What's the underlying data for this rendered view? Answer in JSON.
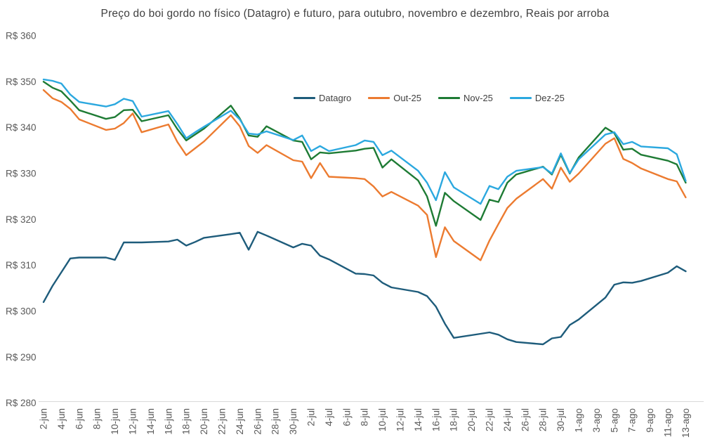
{
  "chart_data": {
    "type": "line",
    "title": "Preço do boi gordo no físico (Datagro) e futuro, para outubro, novembro e dezembro, Reais por arroba",
    "xlabel": "",
    "ylabel": "",
    "ylim": [
      280,
      360
    ],
    "y_tick_labels": [
      "R$ 280",
      "R$ 290",
      "R$ 300",
      "R$ 310",
      "R$ 320",
      "R$ 330",
      "R$ 340",
      "R$ 350",
      "R$ 360"
    ],
    "y_tick_values": [
      280,
      290,
      300,
      310,
      320,
      330,
      340,
      350,
      360
    ],
    "grid": false,
    "legend_position": "top-center",
    "x_tick_labels": [
      "2-jun",
      "4-jun",
      "6-jun",
      "8-jun",
      "10-jun",
      "12-jun",
      "14-jun",
      "16-jun",
      "18-jun",
      "20-jun",
      "22-jun",
      "24-jun",
      "26-jun",
      "28-jun",
      "30-jun",
      "2-jul",
      "4-jul",
      "6-jul",
      "8-jul",
      "10-jul",
      "12-jul",
      "14-jul",
      "16-jul",
      "18-jul",
      "20-jul",
      "22-jul",
      "24-jul",
      "26-jul",
      "28-jul",
      "30-jul",
      "1-ago",
      "3-ago",
      "5-ago",
      "7-ago",
      "9-ago",
      "11-ago",
      "13-ago"
    ],
    "x_tick_day_offsets": [
      0,
      2,
      4,
      6,
      8,
      10,
      12,
      14,
      16,
      18,
      20,
      22,
      24,
      26,
      28,
      30,
      32,
      34,
      36,
      38,
      40,
      42,
      44,
      46,
      48,
      50,
      52,
      54,
      56,
      58,
      60,
      62,
      64,
      66,
      68,
      70,
      72
    ],
    "x_dates": [
      "2-jun",
      "3-jun",
      "4-jun",
      "5-jun",
      "6-jun",
      "9-jun",
      "10-jun",
      "11-jun",
      "12-jun",
      "13-jun",
      "16-jun",
      "17-jun",
      "18-jun",
      "19-jun",
      "20-jun",
      "23-jun",
      "24-jun",
      "25-jun",
      "26-jun",
      "27-jun",
      "30-jun",
      "1-jul",
      "2-jul",
      "3-jul",
      "4-jul",
      "7-jul",
      "8-jul",
      "9-jul",
      "10-jul",
      "11-jul",
      "14-jul",
      "15-jul",
      "16-jul",
      "17-jul",
      "18-jul",
      "21-jul",
      "22-jul",
      "23-jul",
      "24-jul",
      "25-jul",
      "28-jul",
      "29-jul",
      "30-jul",
      "31-jul",
      "1-ago",
      "4-ago",
      "5-ago",
      "6-ago",
      "7-ago",
      "8-ago",
      "11-ago",
      "12-ago",
      "13-ago"
    ],
    "x_day_offsets": [
      0,
      1,
      2,
      3,
      4,
      7,
      8,
      9,
      10,
      11,
      14,
      15,
      16,
      17,
      18,
      21,
      22,
      23,
      24,
      25,
      28,
      29,
      30,
      31,
      32,
      35,
      36,
      37,
      38,
      39,
      42,
      43,
      44,
      45,
      46,
      49,
      50,
      51,
      52,
      53,
      56,
      57,
      58,
      59,
      60,
      63,
      64,
      65,
      66,
      67,
      70,
      71,
      72
    ],
    "series": [
      {
        "name": "Datagro",
        "color": "#1E5C7B",
        "values": [
          302.0,
          305.5,
          308.5,
          311.5,
          311.7,
          311.7,
          311.2,
          315.0,
          315.0,
          315.0,
          315.2,
          315.6,
          314.3,
          315.1,
          316.0,
          316.8,
          317.1,
          313.4,
          317.3,
          316.5,
          313.9,
          314.7,
          314.3,
          312.1,
          311.3,
          308.2,
          308.1,
          307.8,
          306.2,
          305.2,
          304.2,
          303.3,
          301.0,
          297.3,
          294.2,
          295.1,
          295.4,
          294.9,
          293.9,
          293.3,
          292.8,
          294.1,
          294.4,
          297.0,
          298.2,
          303.0,
          305.8,
          306.3,
          306.2,
          306.6,
          308.4,
          309.8,
          308.7
        ]
      },
      {
        "name": "Out-25",
        "color": "#EC7B30",
        "values": [
          348.2,
          346.4,
          345.6,
          344.1,
          341.8,
          339.5,
          339.8,
          341.0,
          343.1,
          339.0,
          340.7,
          336.9,
          334.0,
          335.5,
          337.0,
          342.7,
          340.3,
          336.0,
          334.5,
          336.2,
          332.9,
          332.6,
          329.0,
          332.3,
          329.3,
          329.0,
          328.8,
          327.2,
          325.0,
          326.0,
          323.0,
          321.0,
          311.8,
          318.3,
          315.3,
          311.1,
          315.4,
          319.0,
          322.5,
          324.5,
          328.8,
          326.7,
          331.3,
          328.2,
          330.0,
          336.5,
          337.7,
          333.2,
          332.3,
          331.1,
          328.8,
          328.3,
          324.8
        ]
      },
      {
        "name": "Nov-25",
        "color": "#1E7B34",
        "values": [
          350.0,
          348.7,
          347.9,
          345.9,
          343.8,
          341.9,
          342.3,
          343.8,
          343.9,
          341.4,
          342.7,
          339.7,
          337.2,
          338.5,
          339.8,
          344.8,
          342.0,
          338.3,
          338.0,
          340.3,
          337.2,
          336.9,
          333.1,
          334.6,
          334.4,
          335.0,
          335.4,
          335.6,
          331.3,
          333.1,
          328.5,
          325.0,
          318.6,
          325.8,
          324.0,
          319.9,
          324.3,
          323.8,
          328.0,
          329.8,
          331.5,
          329.8,
          334.1,
          330.0,
          333.5,
          340.0,
          338.8,
          335.2,
          335.4,
          334.1,
          332.8,
          332.0,
          328.0
        ]
      },
      {
        "name": "Dez-25",
        "color": "#2BA8DF",
        "values": [
          350.5,
          350.2,
          349.6,
          347.2,
          345.6,
          344.6,
          345.1,
          346.3,
          345.8,
          342.4,
          343.6,
          340.8,
          337.7,
          339.0,
          340.2,
          343.7,
          341.8,
          338.7,
          338.5,
          339.2,
          337.3,
          338.3,
          334.9,
          336.0,
          334.9,
          336.2,
          337.2,
          336.9,
          334.0,
          335.0,
          330.6,
          328.0,
          324.2,
          330.3,
          327.0,
          323.4,
          327.3,
          326.6,
          329.3,
          330.6,
          331.4,
          330.0,
          334.4,
          330.1,
          333.1,
          338.5,
          339.0,
          336.4,
          336.9,
          335.9,
          335.5,
          334.2,
          328.4
        ]
      }
    ],
    "colors": {
      "background": "#FFFFFF",
      "title_text": "#404040",
      "axis_text": "#595959",
      "axis_line": "#D9D9D9"
    }
  }
}
